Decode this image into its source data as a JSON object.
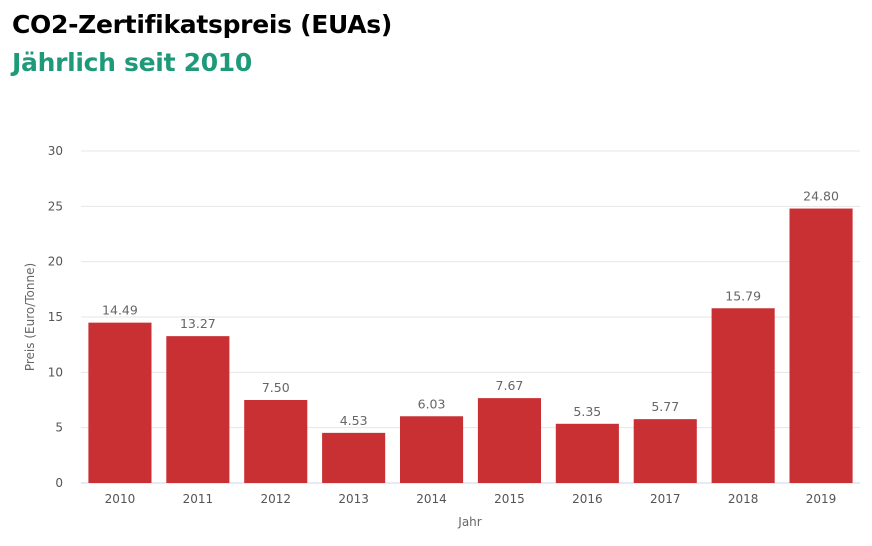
{
  "chart_data": {
    "type": "bar",
    "title": "CO2-Zertifikatspreis (EUAs)",
    "subtitle": "Jährlich seit 2010",
    "xlabel": "Jahr",
    "ylabel": "Preis (Euro/Tonne)",
    "categories": [
      "2010",
      "2011",
      "2012",
      "2013",
      "2014",
      "2015",
      "2016",
      "2017",
      "2018",
      "2019"
    ],
    "values": [
      14.49,
      13.27,
      7.5,
      4.53,
      6.03,
      7.67,
      5.35,
      5.77,
      15.79,
      24.8
    ],
    "data_labels": [
      "14.49",
      "13.27",
      "7.50",
      "4.53",
      "6.03",
      "7.67",
      "5.35",
      "5.77",
      "15.79",
      "24.80"
    ],
    "ylim": [
      0,
      30
    ],
    "yticks": [
      0,
      5,
      10,
      15,
      20,
      25,
      30
    ],
    "grid": true,
    "legend": "none",
    "colors": {
      "bar": "#c83034",
      "subtitle": "#1e9a7a"
    }
  }
}
